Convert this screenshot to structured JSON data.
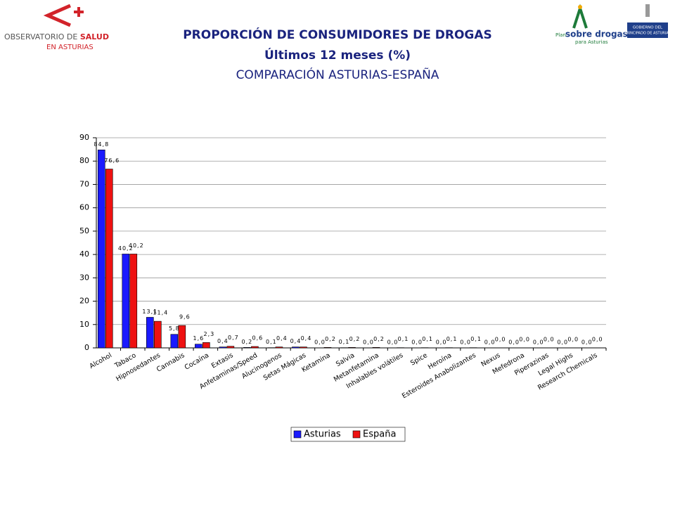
{
  "logos": {
    "observatorio": [
      "OBSERVATORIO DE ",
      "SALUD",
      "EN ASTURIAS"
    ],
    "plan": [
      "Plan",
      "sobre drogas",
      "para Asturias"
    ],
    "gobierno": [
      "GOBIERNO DEL",
      "PRINCIPADO DE ASTURIAS"
    ]
  },
  "chart_data": {
    "type": "bar",
    "title": "PROPORCIÓN DE CONSUMIDORES DE DROGAS",
    "subtitle": "Últimos 12 meses (%)",
    "subtitle2": "COMPARACIÓN ASTURIAS-ESPAÑA",
    "categories": [
      "Alcohol",
      "Tabaco",
      "Hipnosedantes",
      "Cannabis",
      "Cocaína",
      "Extasis",
      "Anfetaminas/Speed",
      "Alucinogenos",
      "Setas Mágicas",
      "Ketamina",
      "Salvia",
      "Metanfetamina",
      "Inhalables volátiles",
      "Spice",
      "Heroína",
      "Esteroides Anabolizantes",
      "Nexus",
      "Mefedrona",
      "Piperazinas",
      "Legal Highs",
      "Research Chemicals"
    ],
    "series": [
      {
        "name": "Asturias",
        "color": "#1a1aff",
        "values": [
          84.8,
          40.2,
          13.1,
          5.8,
          1.6,
          0.4,
          0.2,
          0.1,
          0.4,
          0.0,
          0.1,
          0.0,
          0.0,
          0.0,
          0.0,
          0.0,
          0.0,
          0.0,
          0.0,
          0.0,
          0.0
        ],
        "value_labels": [
          "84,8",
          "40,2",
          "13,1",
          "5,8",
          "1,6",
          "0,4",
          "0,2",
          "0,1",
          "0,4",
          "0,0",
          "0,1",
          "0,0",
          "0,0",
          "0,0",
          "0,0",
          "0,0",
          "0,0",
          "0,0",
          "0,0",
          "0,0",
          "0,0"
        ]
      },
      {
        "name": "España",
        "color": "#ee1111",
        "values": [
          76.6,
          40.2,
          11.4,
          9.6,
          2.3,
          0.7,
          0.6,
          0.4,
          0.4,
          0.2,
          0.2,
          0.2,
          0.1,
          0.1,
          0.1,
          0.1,
          0.0,
          0.0,
          0.0,
          0.0,
          0.0
        ],
        "value_labels": [
          "76,6",
          "40,2",
          "11,4",
          "9,6",
          "2,3",
          "0,7",
          "0,6",
          "0,4",
          "0,4",
          "0,2",
          "0,2",
          "0,2",
          "0,1",
          "0,1",
          "0,1",
          "0,1",
          "0,0",
          "0,0",
          "0,0",
          "0,0",
          "0,0"
        ]
      }
    ],
    "ylim": [
      0,
      90
    ],
    "yticks": [
      0,
      10,
      20,
      30,
      40,
      50,
      60,
      70,
      80,
      90
    ],
    "grid": true,
    "legend": "bottom"
  }
}
